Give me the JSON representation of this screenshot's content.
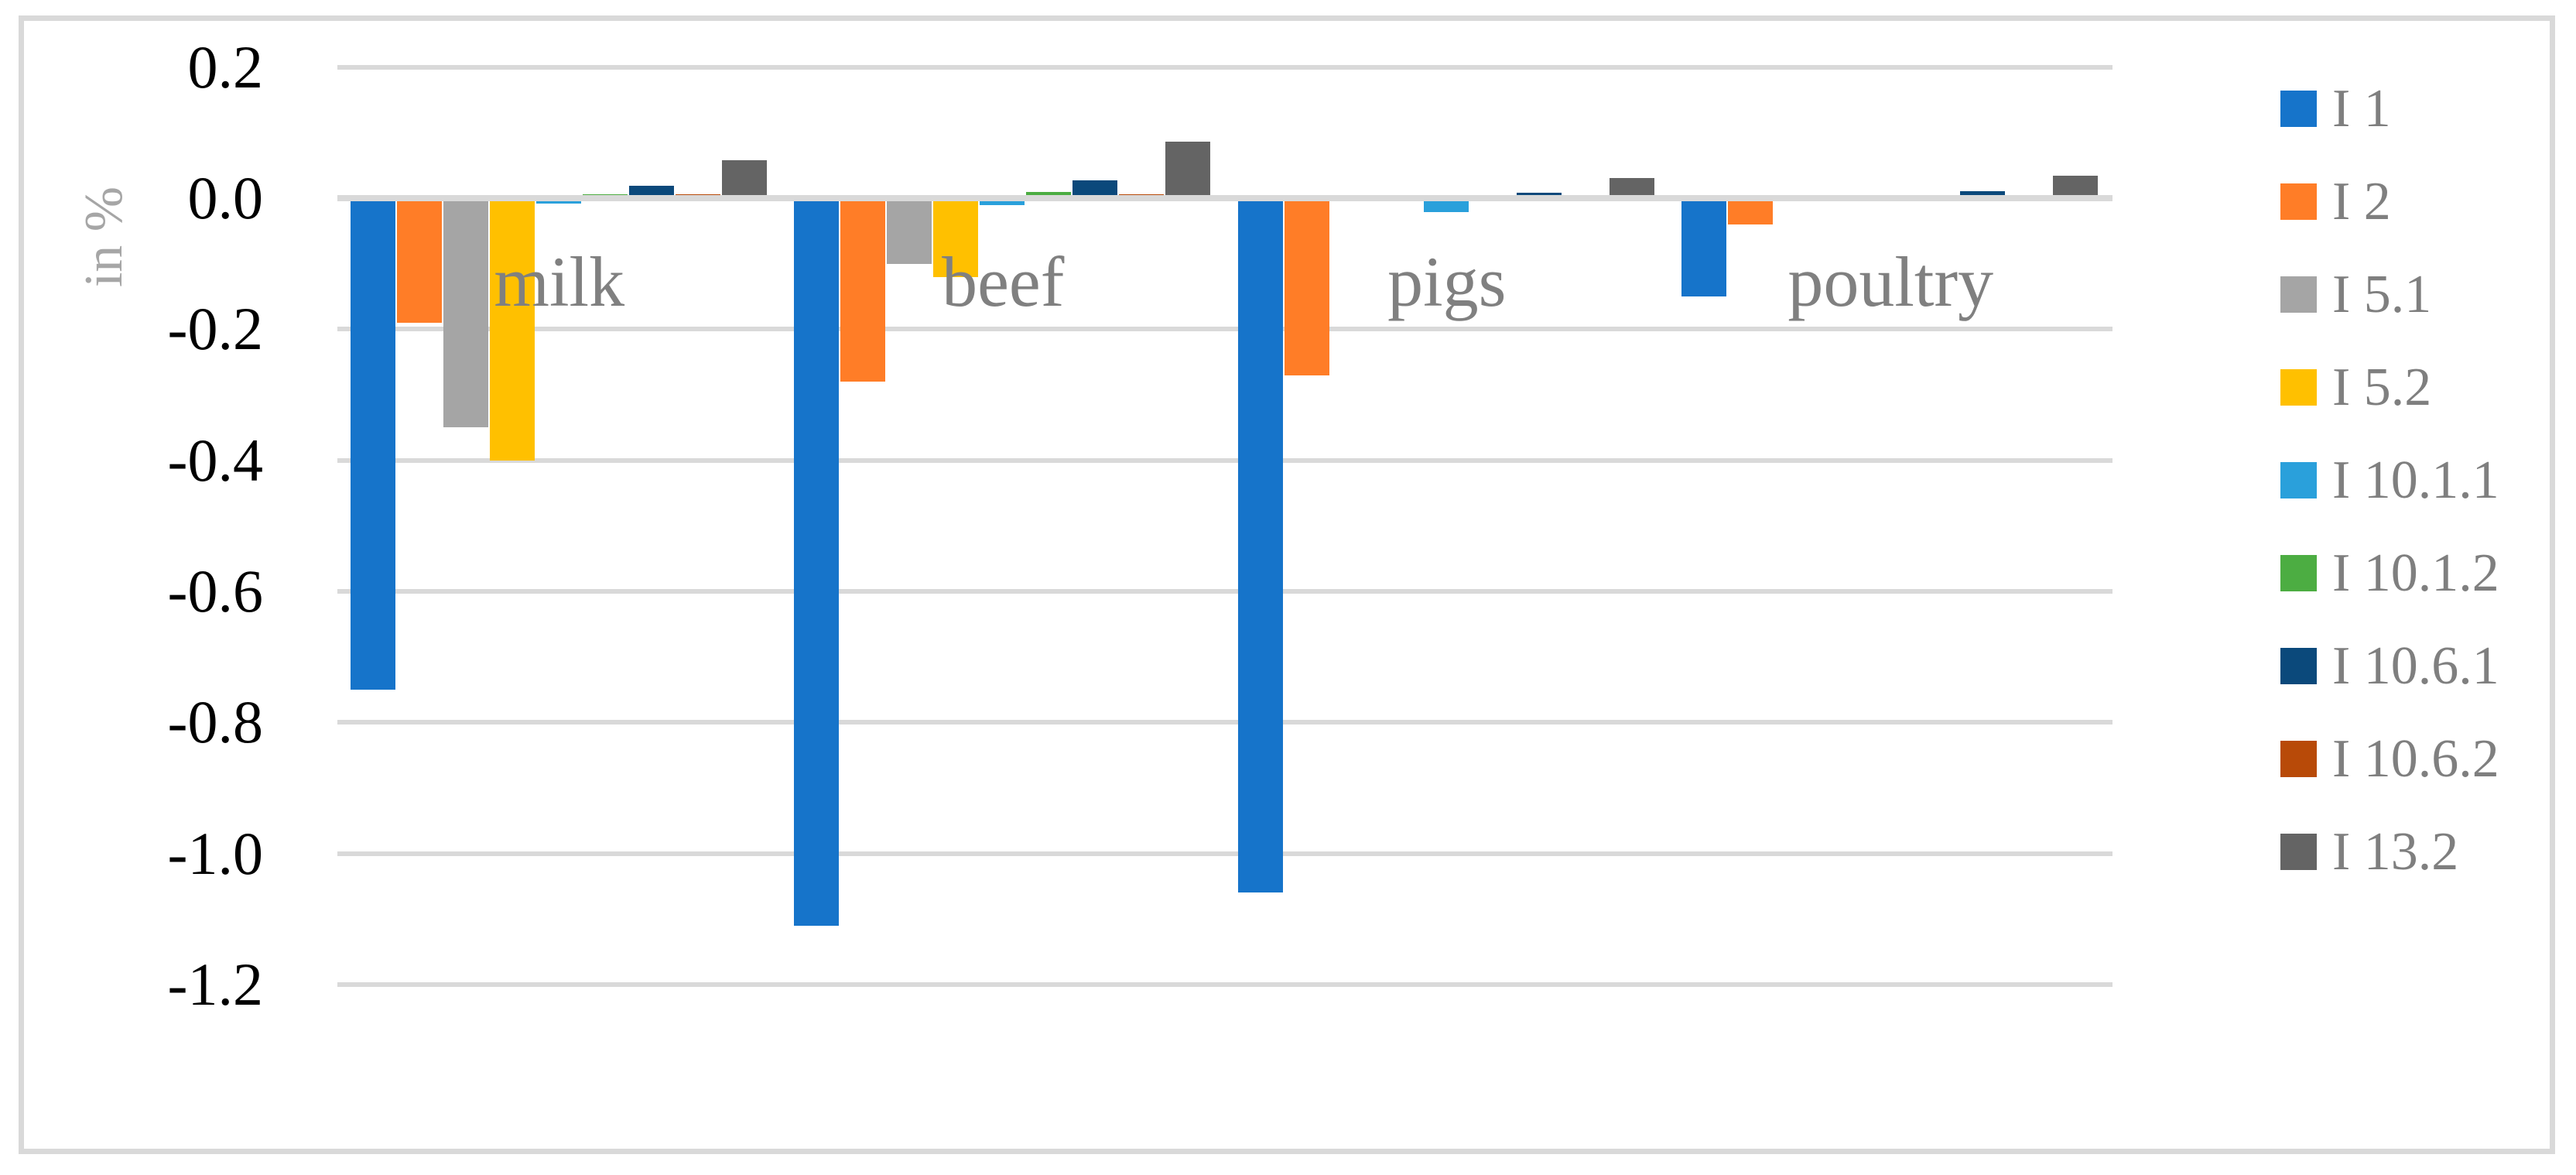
{
  "chart_data": {
    "type": "bar",
    "title": "",
    "xlabel": "",
    "ylabel": "in %",
    "categories": [
      "milk",
      "beef",
      "pigs",
      "poultry"
    ],
    "series": [
      {
        "name": "I 1",
        "color": "#1674CA",
        "values": [
          -0.75,
          -1.11,
          -1.06,
          -0.15
        ]
      },
      {
        "name": "I 2",
        "color": "#FF7D27",
        "values": [
          -0.19,
          -0.28,
          -0.27,
          -0.04
        ]
      },
      {
        "name": "I 5.1",
        "color": "#A5A5A5",
        "values": [
          -0.35,
          -0.1,
          0,
          0
        ]
      },
      {
        "name": "I 5.2",
        "color": "#FFC000",
        "values": [
          -0.4,
          -0.12,
          0,
          0
        ]
      },
      {
        "name": "I 10.1.1",
        "color": "#2AA0DB",
        "values": [
          -0.008,
          -0.011,
          -0.021,
          0
        ]
      },
      {
        "name": "I 10.1.2",
        "color": "#4CAD42",
        "values": [
          0.006,
          0.009,
          0,
          0
        ]
      },
      {
        "name": "I 10.6.1",
        "color": "#0B497B",
        "values": [
          0.019,
          0.027,
          0.008,
          0.011
        ]
      },
      {
        "name": "I 10.6.2",
        "color": "#B84A08",
        "values": [
          0.006,
          0.006,
          0,
          0
        ]
      },
      {
        "name": "I 13.2",
        "color": "#646464",
        "values": [
          0.058,
          0.086,
          0.031,
          0.034
        ]
      }
    ],
    "y_axis": {
      "min": -1.2,
      "max": 0.2,
      "step": 0.2,
      "tick_labels": [
        "0.2",
        "0.0",
        "-0.2",
        "-0.4",
        "-0.6",
        "-0.8",
        "-1.0",
        "-1.2"
      ]
    },
    "grid": true,
    "legend_position": "right",
    "colors": {
      "gridline": "#D9D9D9",
      "frame": "#D9D9D9",
      "category_text": "#808080",
      "legend_text": "#7F7F7F",
      "axis_title_text": "#A6A6A6",
      "tick_text": "#000000"
    }
  }
}
